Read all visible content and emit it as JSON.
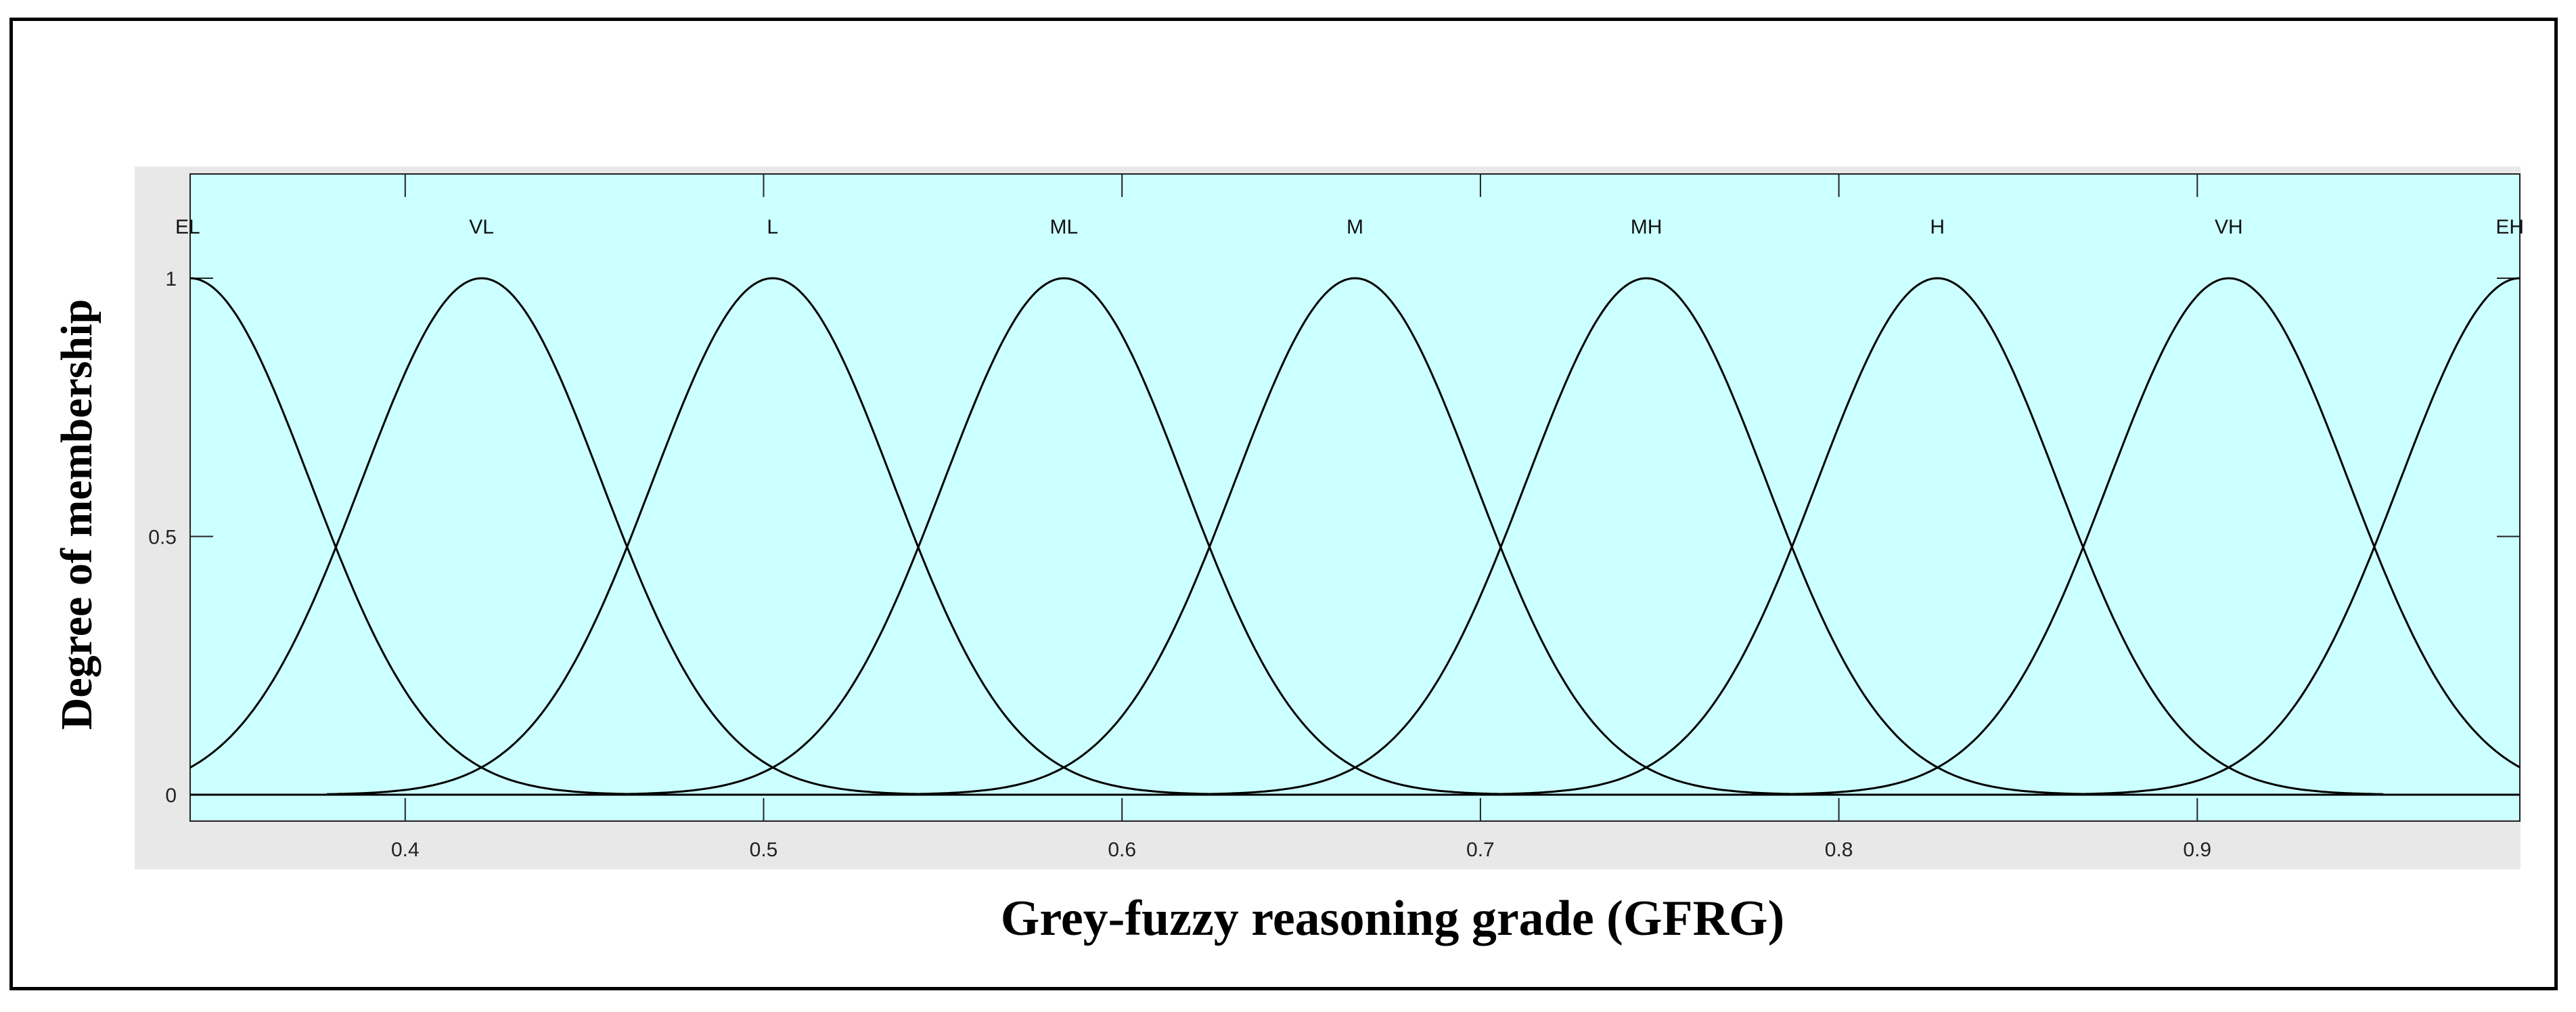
{
  "chart_data": {
    "type": "line",
    "title": "",
    "xlabel": "Grey-fuzzy reasoning grade (GFRG)",
    "ylabel": "Degree of membership",
    "xlim": [
      0.34,
      0.99
    ],
    "ylim": [
      0,
      1
    ],
    "xticks": [
      "0.4",
      "0.5",
      "0.6",
      "0.7",
      "0.8",
      "0.9"
    ],
    "xtick_values": [
      0.4,
      0.5,
      0.6,
      0.7,
      0.8,
      0.9
    ],
    "yticks": [
      "0",
      "0.5",
      "1"
    ],
    "ytick_values": [
      0,
      0.5,
      1
    ],
    "membership_function": "gaussian",
    "sigma": 0.0335,
    "series": [
      {
        "name": "EL",
        "center": 0.34
      },
      {
        "name": "VL",
        "center": 0.4213
      },
      {
        "name": "L",
        "center": 0.5025
      },
      {
        "name": "ML",
        "center": 0.5838
      },
      {
        "name": "M",
        "center": 0.665
      },
      {
        "name": "MH",
        "center": 0.7463
      },
      {
        "name": "H",
        "center": 0.8275
      },
      {
        "name": "VH",
        "center": 0.9088
      },
      {
        "name": "EH",
        "center": 0.99
      }
    ],
    "grid": false,
    "legend": "labels above peaks"
  },
  "colors": {
    "plot_background": "#ccffff",
    "panel_background": "#e8e8e8",
    "curve": "#000000",
    "frame": "#000000"
  }
}
